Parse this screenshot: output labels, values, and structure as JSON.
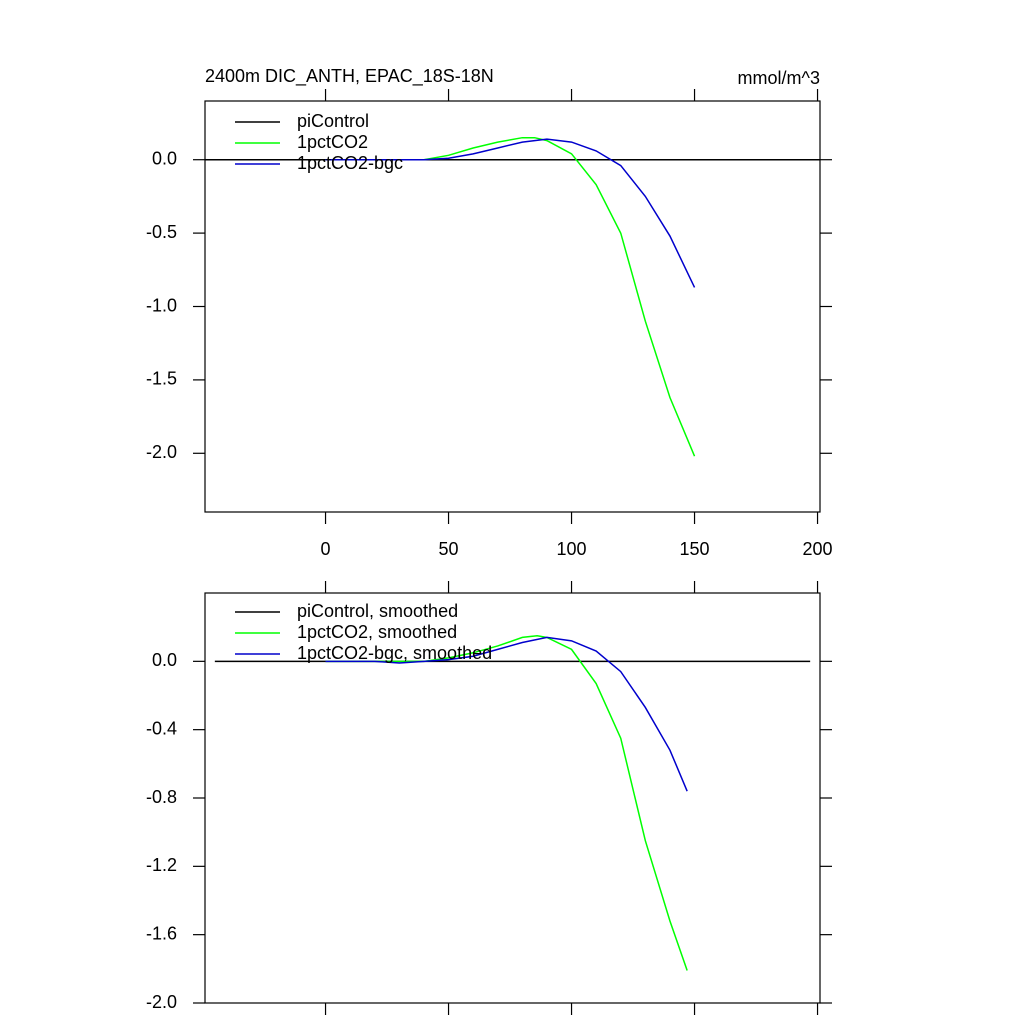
{
  "chart_data": [
    {
      "type": "line",
      "title": "2400m DIC_ANTH, EPAC_18S-18N",
      "units": "mmol/m^3",
      "xlim": [
        -49,
        201
      ],
      "xticks": [
        0,
        50,
        100,
        150,
        200
      ],
      "ylim": [
        -2.4,
        0.4
      ],
      "yticks": [
        {
          "value": -2.0,
          "label": "-2.0"
        },
        {
          "value": -1.5,
          "label": "-1.5"
        },
        {
          "value": -1.0,
          "label": "-1.0"
        },
        {
          "value": -0.5,
          "label": "-0.5"
        },
        {
          "value": 0.0,
          "label": "0.0"
        }
      ],
      "legend": "upper left",
      "series": [
        {
          "name": "piControl",
          "color": "#000000",
          "x": [
            -49,
            201
          ],
          "values": [
            0,
            0
          ]
        },
        {
          "name": "1pctCO2",
          "color": "#00ff00",
          "x": [
            0,
            10,
            20,
            30,
            40,
            50,
            60,
            70,
            80,
            85,
            90,
            100,
            110,
            120,
            130,
            140,
            150
          ],
          "values": [
            0,
            0,
            0,
            0,
            0,
            0.03,
            0.08,
            0.12,
            0.15,
            0.15,
            0.13,
            0.04,
            -0.17,
            -0.5,
            -1.1,
            -1.62,
            -2.02
          ]
        },
        {
          "name": "1pctCO2-bgc",
          "color": "#0000cc",
          "x": [
            0,
            10,
            20,
            30,
            40,
            50,
            60,
            70,
            80,
            90,
            100,
            110,
            120,
            130,
            140,
            150
          ],
          "values": [
            0,
            0,
            0,
            0,
            0,
            0.01,
            0.04,
            0.08,
            0.12,
            0.14,
            0.12,
            0.06,
            -0.04,
            -0.25,
            -0.52,
            -0.87
          ]
        }
      ]
    },
    {
      "type": "line",
      "xlim": [
        -49,
        201
      ],
      "xticks": [
        0,
        50,
        100,
        150,
        200
      ],
      "ylim": [
        -2.0,
        0.4
      ],
      "yticks": [
        {
          "value": -2.0,
          "label": "-2.0"
        },
        {
          "value": -1.6,
          "label": "-1.6"
        },
        {
          "value": -1.2,
          "label": "-1.2"
        },
        {
          "value": -0.8,
          "label": "-0.8"
        },
        {
          "value": -0.4,
          "label": "-0.4"
        },
        {
          "value": 0.0,
          "label": "0.0"
        }
      ],
      "legend": "upper left",
      "series": [
        {
          "name": "piControl, smoothed",
          "color": "#000000",
          "x": [
            -45,
            197
          ],
          "values": [
            0,
            0
          ]
        },
        {
          "name": "1pctCO2, smoothed",
          "color": "#00ff00",
          "x": [
            0,
            10,
            20,
            30,
            40,
            50,
            60,
            70,
            80,
            86,
            90,
            100,
            110,
            120,
            130,
            140,
            147
          ],
          "values": [
            0,
            0,
            0,
            0,
            0,
            0.02,
            0.05,
            0.09,
            0.14,
            0.15,
            0.14,
            0.07,
            -0.13,
            -0.45,
            -1.05,
            -1.52,
            -1.81
          ]
        },
        {
          "name": "1pctCO2-bgc, smoothed",
          "color": "#0000cc",
          "x": [
            0,
            10,
            20,
            30,
            40,
            50,
            60,
            70,
            80,
            90,
            100,
            110,
            120,
            130,
            140,
            147
          ],
          "values": [
            0,
            0,
            0,
            -0.01,
            0,
            0.01,
            0.03,
            0.07,
            0.11,
            0.14,
            0.12,
            0.06,
            -0.06,
            -0.27,
            -0.52,
            -0.76
          ]
        }
      ]
    }
  ]
}
